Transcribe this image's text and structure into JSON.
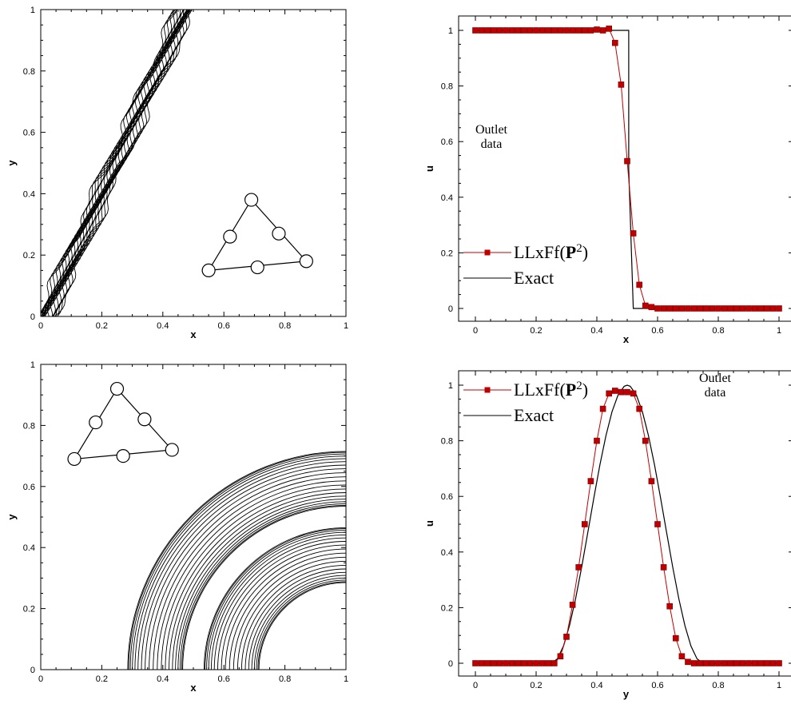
{
  "colors": {
    "numeric": "#c00000",
    "exact": "#000000",
    "contour": "#000000"
  },
  "chart_data": [
    {
      "type": "contour",
      "xlabel": "x",
      "ylabel": "y",
      "xlim": [
        0,
        1
      ],
      "ylim": [
        0,
        1
      ],
      "xticks": [
        "0",
        "0.2",
        "0.4",
        "0.6",
        "0.8",
        "1"
      ],
      "yticks": [
        "0",
        "0.2",
        "0.4",
        "0.6",
        "0.8",
        "1"
      ],
      "band": {
        "slope": 2.2,
        "intercept_low": -0.1,
        "intercept_high": 0.02,
        "levels": 24
      },
      "stencil": {
        "nodes": [
          [
            0.55,
            0.15
          ],
          [
            0.71,
            0.16
          ],
          [
            0.87,
            0.18
          ],
          [
            0.62,
            0.26
          ],
          [
            0.78,
            0.27
          ],
          [
            0.69,
            0.38
          ]
        ]
      }
    },
    {
      "type": "line",
      "xlabel": "x",
      "ylabel": "u",
      "xlim": [
        0,
        1
      ],
      "ylim": [
        0,
        1
      ],
      "xticks": [
        "0",
        "0.2",
        "0.4",
        "0.6",
        "0.8",
        "1"
      ],
      "yticks": [
        "0",
        "0.2",
        "0.4",
        "0.6",
        "0.8",
        "1"
      ],
      "annotation": [
        "Outlet",
        "data"
      ],
      "legend": {
        "numeric_label": "LLxFf(",
        "numeric_sym": "P",
        "numeric_sup": "2",
        "numeric_close": ")",
        "exact_label": "Exact"
      },
      "series": [
        {
          "name": "LLxFf(P2)",
          "marker": "square",
          "x": [
            0,
            0.02,
            0.04,
            0.06,
            0.08,
            0.1,
            0.12,
            0.14,
            0.16,
            0.18,
            0.2,
            0.22,
            0.24,
            0.26,
            0.28,
            0.3,
            0.32,
            0.34,
            0.36,
            0.38,
            0.4,
            0.42,
            0.44,
            0.46,
            0.48,
            0.5,
            0.52,
            0.54,
            0.56,
            0.58,
            0.6,
            0.62,
            0.64,
            0.66,
            0.68,
            0.7,
            0.72,
            0.74,
            0.76,
            0.78,
            0.8,
            0.82,
            0.84,
            0.86,
            0.88,
            0.9,
            0.92,
            0.94,
            0.96,
            0.98,
            1.0
          ],
          "y": [
            1,
            1,
            1,
            1,
            1,
            1,
            1,
            1,
            1,
            1,
            1,
            1,
            1,
            1,
            1,
            1,
            1,
            1,
            1,
            1,
            1.003,
            1,
            1.006,
            0.955,
            0.805,
            0.53,
            0.27,
            0.085,
            0.01,
            0.005,
            0,
            0,
            0,
            0,
            0,
            0,
            0,
            0,
            0,
            0,
            0,
            0,
            0,
            0,
            0,
            0,
            0,
            0,
            0,
            0,
            0
          ]
        },
        {
          "name": "Exact",
          "x": [
            0,
            0.505,
            0.505,
            0.52,
            0.52,
            1.0
          ],
          "y": [
            1,
            1,
            0.5,
            0.0,
            0,
            0
          ]
        }
      ]
    },
    {
      "type": "contour",
      "xlabel": "x",
      "ylabel": "y",
      "xlim": [
        0,
        1
      ],
      "ylim": [
        0,
        1
      ],
      "xticks": [
        "0",
        "0.2",
        "0.4",
        "0.6",
        "0.8",
        "1"
      ],
      "yticks": [
        "0",
        "0.2",
        "0.4",
        "0.6",
        "0.8",
        "1"
      ],
      "rings": {
        "center": [
          1,
          0
        ],
        "outer_band": [
          0.535,
          0.715
        ],
        "inner_band": [
          0.285,
          0.465
        ],
        "levels": 20
      },
      "stencil": {
        "nodes": [
          [
            0.11,
            0.69
          ],
          [
            0.27,
            0.7
          ],
          [
            0.43,
            0.72
          ],
          [
            0.18,
            0.81
          ],
          [
            0.34,
            0.82
          ],
          [
            0.25,
            0.92
          ]
        ]
      }
    },
    {
      "type": "line",
      "xlabel": "y",
      "ylabel": "u",
      "xlim": [
        0,
        1
      ],
      "ylim": [
        0,
        1
      ],
      "xticks": [
        "0",
        "0.2",
        "0.4",
        "0.6",
        "0.8",
        "1"
      ],
      "yticks": [
        "0",
        "0.2",
        "0.4",
        "0.6",
        "0.8",
        "1"
      ],
      "annotation": [
        "Outlet",
        "data"
      ],
      "legend": {
        "numeric_label": "LLxFf(",
        "numeric_sym": "P",
        "numeric_sup": "2",
        "numeric_close": ")",
        "exact_label": "Exact"
      },
      "series": [
        {
          "name": "LLxFf(P2)",
          "marker": "square",
          "x": [
            0,
            0.02,
            0.04,
            0.06,
            0.08,
            0.1,
            0.12,
            0.14,
            0.16,
            0.18,
            0.2,
            0.22,
            0.24,
            0.26,
            0.28,
            0.3,
            0.32,
            0.34,
            0.36,
            0.38,
            0.4,
            0.42,
            0.44,
            0.46,
            0.48,
            0.5,
            0.52,
            0.54,
            0.56,
            0.58,
            0.6,
            0.62,
            0.64,
            0.66,
            0.68,
            0.7,
            0.72,
            0.74,
            0.76,
            0.78,
            0.8,
            0.82,
            0.84,
            0.86,
            0.88,
            0.9,
            0.92,
            0.94,
            0.96,
            0.98,
            1.0
          ],
          "y": [
            0,
            0,
            0,
            0,
            0,
            0,
            0,
            0,
            0,
            0,
            0,
            0,
            0,
            0,
            0.025,
            0.095,
            0.21,
            0.345,
            0.5,
            0.655,
            0.8,
            0.915,
            0.97,
            0.98,
            0.975,
            0.975,
            0.97,
            0.915,
            0.8,
            0.655,
            0.5,
            0.345,
            0.205,
            0.09,
            0.025,
            0.005,
            0,
            0,
            0,
            0,
            0,
            0,
            0,
            0,
            0,
            0,
            0,
            0,
            0,
            0,
            0
          ]
        },
        {
          "name": "Exact",
          "x": [
            0,
            0.25,
            0.27,
            0.29,
            0.31,
            0.33,
            0.35,
            0.37,
            0.39,
            0.41,
            0.43,
            0.45,
            0.47,
            0.49,
            0.5,
            0.51,
            0.53,
            0.55,
            0.57,
            0.59,
            0.61,
            0.63,
            0.65,
            0.67,
            0.69,
            0.71,
            0.73,
            0.75,
            1.0
          ],
          "y": [
            0,
            0,
            0.0157,
            0.0618,
            0.1355,
            0.2321,
            0.3455,
            0.4686,
            0.5937,
            0.7129,
            0.8187,
            0.9045,
            0.9649,
            0.9961,
            1.0,
            0.9961,
            0.9649,
            0.9045,
            0.8187,
            0.7129,
            0.5937,
            0.4686,
            0.3455,
            0.2321,
            0.1355,
            0.0618,
            0.0157,
            0,
            0
          ]
        }
      ]
    }
  ]
}
